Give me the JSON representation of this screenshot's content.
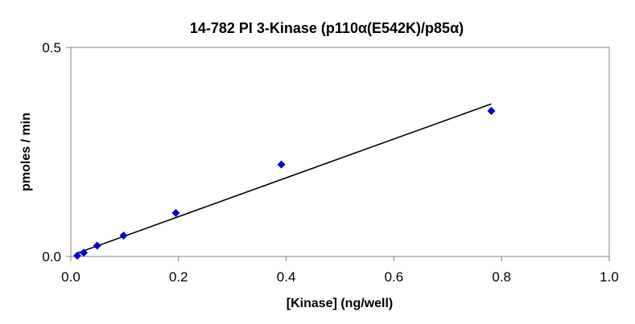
{
  "chart_data": {
    "type": "scatter",
    "title": "14-782 PI 3-Kinase (p110α(E542K)/p85α)",
    "xlabel": "[Kinase] (ng/well)",
    "ylabel": "pmoles / min",
    "xlim": [
      0,
      1.0
    ],
    "ylim": [
      0,
      0.5
    ],
    "x_ticks": [
      0.0,
      0.2,
      0.4,
      0.6,
      0.8,
      1.0
    ],
    "x_tick_labels": [
      "0.0",
      "0.2",
      "0.4",
      "0.6",
      "0.8",
      "1.0"
    ],
    "y_ticks": [
      0.0,
      0.5
    ],
    "y_tick_labels": [
      "0.0",
      "0.5"
    ],
    "grid": false,
    "legend": "none",
    "marker": "diamond",
    "marker_color": "#0000cc",
    "trendline_color": "#000000",
    "series": [
      {
        "x": [
          0.012,
          0.024,
          0.049,
          0.098,
          0.195,
          0.391,
          0.781
        ],
        "y": [
          0.002,
          0.009,
          0.026,
          0.05,
          0.104,
          0.22,
          0.348
        ]
      }
    ],
    "trendline": {
      "x": [
        0.012,
        0.781
      ],
      "y": [
        0.008,
        0.365
      ]
    }
  }
}
